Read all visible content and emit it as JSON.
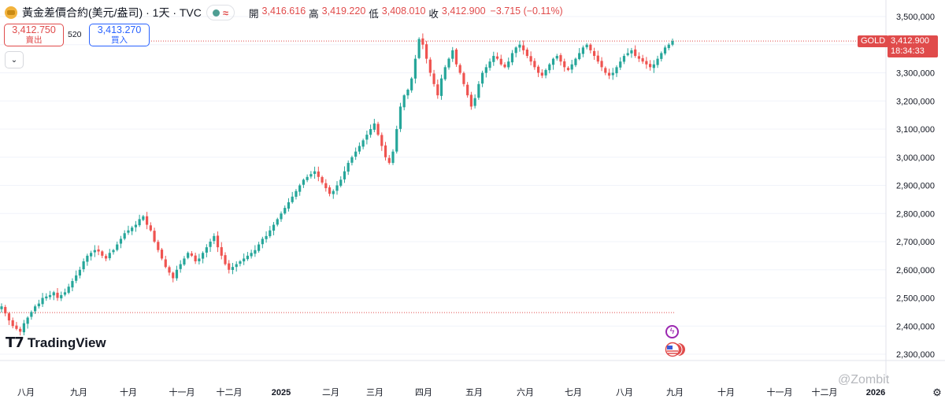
{
  "header": {
    "symbol_title": "黃金差價合約(美元/盎司) · 1天 · TVC",
    "open_label": "開",
    "open_value": "3,416.616",
    "high_label": "高",
    "high_value": "3,419.220",
    "low_label": "低",
    "low_value": "3,408.010",
    "close_label": "收",
    "close_value": "3,412.900",
    "change": "−3.715 (−0.11%)"
  },
  "trade": {
    "sell_price": "3,412.750",
    "sell_label": "賣出",
    "spread": "520",
    "buy_price": "3,413.270",
    "buy_label": "買入"
  },
  "price_tag": {
    "symbol": "GOLD",
    "price": "3,412.900",
    "countdown": "18:34:33"
  },
  "brand": {
    "name": "TradingView"
  },
  "watermark": "@Zombit",
  "colors": {
    "up": "#26a69a",
    "down": "#ef5350",
    "accent_red": "#e04b4b",
    "accent_blue": "#2962ff"
  },
  "chart_data": {
    "type": "candlestick",
    "y_axis_labels": [
      "3,500,000",
      "3,400,000",
      "3,300,000",
      "3,200,000",
      "3,100,000",
      "3,000,000",
      "2,900,000",
      "2,800,000",
      "2,700,000",
      "2,600,000",
      "2,500,000",
      "2,400,000",
      "2,300,000"
    ],
    "y_axis_values": [
      3500,
      3400,
      3300,
      3200,
      3100,
      3000,
      2900,
      2800,
      2700,
      2600,
      2500,
      2400,
      2300
    ],
    "x_axis_labels": [
      "八月",
      "九月",
      "十月",
      "十一月",
      "十二月",
      "2025",
      "二月",
      "三月",
      "四月",
      "五月",
      "六月",
      "七月",
      "八月",
      "九月",
      "十月",
      "十一月",
      "十二月",
      "2026"
    ],
    "x_bold_labels": [
      "2025",
      "2026"
    ],
    "ylim": [
      2265,
      3530
    ],
    "current_price": 3412.9,
    "reference_line": 2448,
    "closes_approx": [
      2470,
      2445,
      2420,
      2400,
      2390,
      2380,
      2410,
      2430,
      2450,
      2470,
      2480,
      2500,
      2505,
      2510,
      2520,
      2500,
      2510,
      2520,
      2540,
      2560,
      2580,
      2600,
      2630,
      2650,
      2660,
      2670,
      2665,
      2650,
      2640,
      2660,
      2670,
      2690,
      2710,
      2730,
      2740,
      2750,
      2760,
      2780,
      2790,
      2760,
      2740,
      2700,
      2670,
      2640,
      2610,
      2590,
      2570,
      2600,
      2620,
      2640,
      2660,
      2650,
      2630,
      2640,
      2660,
      2680,
      2700,
      2720,
      2680,
      2650,
      2620,
      2600,
      2610,
      2620,
      2630,
      2640,
      2650,
      2660,
      2670,
      2690,
      2710,
      2720,
      2740,
      2760,
      2780,
      2800,
      2820,
      2840,
      2860,
      2880,
      2900,
      2920,
      2930,
      2940,
      2950,
      2930,
      2910,
      2890,
      2870,
      2880,
      2900,
      2920,
      2950,
      2980,
      3000,
      3020,
      3040,
      3060,
      3080,
      3100,
      3120,
      3080,
      3040,
      3000,
      2980,
      3020,
      3100,
      3180,
      3220,
      3240,
      3280,
      3350,
      3420,
      3400,
      3350,
      3300,
      3260,
      3220,
      3280,
      3320,
      3350,
      3380,
      3330,
      3300,
      3260,
      3220,
      3180,
      3210,
      3260,
      3300,
      3320,
      3340,
      3360,
      3350,
      3330,
      3320,
      3340,
      3370,
      3390,
      3400,
      3380,
      3360,
      3340,
      3320,
      3300,
      3290,
      3310,
      3330,
      3350,
      3360,
      3340,
      3320,
      3310,
      3330,
      3350,
      3370,
      3390,
      3400,
      3380,
      3360,
      3340,
      3320,
      3300,
      3290,
      3300,
      3320,
      3340,
      3360,
      3370,
      3380,
      3360,
      3350,
      3340,
      3330,
      3320,
      3330,
      3350,
      3370,
      3390,
      3400,
      3412.9
    ]
  }
}
